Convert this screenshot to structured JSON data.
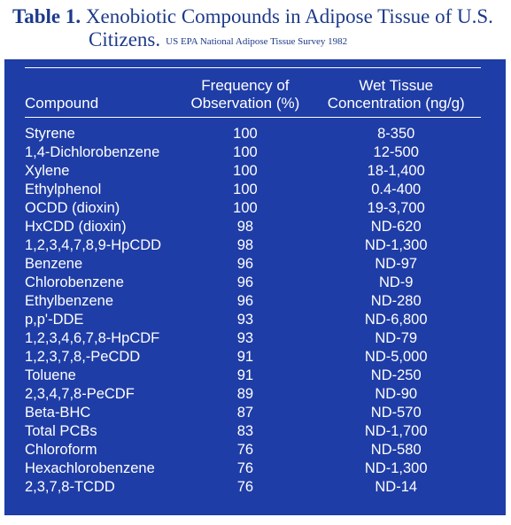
{
  "caption": {
    "label": "Table 1.",
    "title_line1": "Xenobiotic Compounds in Adipose Tissue of U.S.",
    "title_line2": "Citizens.",
    "source": "US EPA National Adipose Tissue Survey 1982"
  },
  "table": {
    "headers": {
      "compound": "Compound",
      "frequency_line1": "Frequency of",
      "frequency_line2": "Observation (%)",
      "concentration_line1": "Wet Tissue",
      "concentration_line2": "Concentration (ng/g)"
    },
    "rows": [
      {
        "compound": "Styrene",
        "frequency": "100",
        "concentration": "8-350"
      },
      {
        "compound": "1,4-Dichlorobenzene",
        "frequency": "100",
        "concentration": "12-500"
      },
      {
        "compound": "Xylene",
        "frequency": "100",
        "concentration": "18-1,400"
      },
      {
        "compound": "Ethylphenol",
        "frequency": "100",
        "concentration": "0.4-400"
      },
      {
        "compound": "OCDD (dioxin)",
        "frequency": "100",
        "concentration": "19-3,700"
      },
      {
        "compound": "HxCDD (dioxin)",
        "frequency": "98",
        "concentration": "ND-620"
      },
      {
        "compound": "1,2,3,4,7,8,9-HpCDD",
        "frequency": "98",
        "concentration": "ND-1,300"
      },
      {
        "compound": "Benzene",
        "frequency": "96",
        "concentration": "ND-97"
      },
      {
        "compound": "Chlorobenzene",
        "frequency": "96",
        "concentration": "ND-9"
      },
      {
        "compound": "Ethylbenzene",
        "frequency": "96",
        "concentration": "ND-280"
      },
      {
        "compound": "p,p'-DDE",
        "frequency": "93",
        "concentration": "ND-6,800"
      },
      {
        "compound": "1,2,3,4,6,7,8-HpCDF",
        "frequency": "93",
        "concentration": "ND-79"
      },
      {
        "compound": "1,2,3,7,8,-PeCDD",
        "frequency": "91",
        "concentration": "ND-5,000"
      },
      {
        "compound": "Toluene",
        "frequency": "91",
        "concentration": "ND-250"
      },
      {
        "compound": "2,3,4,7,8-PeCDF",
        "frequency": "89",
        "concentration": "ND-90"
      },
      {
        "compound": "Beta-BHC",
        "frequency": "87",
        "concentration": "ND-570"
      },
      {
        "compound": "Total PCBs",
        "frequency": "83",
        "concentration": "ND-1,700"
      },
      {
        "compound": "Chloroform",
        "frequency": "76",
        "concentration": "ND-580"
      },
      {
        "compound": "Hexachlorobenzene",
        "frequency": "76",
        "concentration": "ND-1,300"
      },
      {
        "compound": "2,3,7,8-TCDD",
        "frequency": "76",
        "concentration": "ND-14"
      }
    ]
  },
  "colors": {
    "panel": "#1f3da6",
    "caption_text": "#1d3a8a",
    "table_text": "#ffffff"
  }
}
